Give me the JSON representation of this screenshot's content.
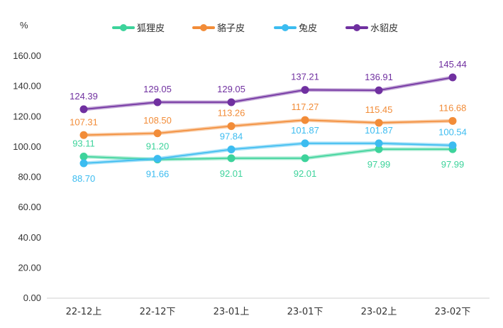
{
  "chart_data": {
    "type": "line",
    "yunit": "%",
    "categories": [
      "22-12上",
      "22-12下",
      "23-01上",
      "23-01下",
      "23-02上",
      "23-02下"
    ],
    "ylim": [
      0,
      160
    ],
    "yticks": [
      0,
      20,
      40,
      60,
      80,
      100,
      120,
      140,
      160
    ],
    "ytick_labels": [
      "0.00",
      "20.00",
      "40.00",
      "60.00",
      "80.00",
      "100.00",
      "120.00",
      "140.00",
      "160.00"
    ],
    "legend_position": "top",
    "grid": false,
    "series": [
      {
        "name": "狐狸皮",
        "color": "#3dd39b",
        "values": [
          93.11,
          91.2,
          92.01,
          92.01,
          97.99,
          97.99
        ],
        "labels": [
          "93.11",
          "91.20",
          "92.01",
          "92.01",
          "97.99",
          "97.99"
        ],
        "label_side": [
          "above",
          "above",
          "below",
          "below",
          "below",
          "below"
        ]
      },
      {
        "name": "貉子皮",
        "color": "#f28c38",
        "values": [
          107.31,
          108.5,
          113.26,
          117.27,
          115.45,
          116.68
        ],
        "labels": [
          "107.31",
          "108.50",
          "113.26",
          "117.27",
          "115.45",
          "116.68"
        ],
        "label_side": [
          "above",
          "above",
          "above",
          "above",
          "above",
          "above"
        ]
      },
      {
        "name": "兔皮",
        "color": "#3cbcf0",
        "values": [
          88.7,
          91.66,
          97.84,
          101.87,
          101.87,
          100.54
        ],
        "labels": [
          "88.70",
          "91.66",
          "97.84",
          "101.87",
          "101.87",
          "100.54"
        ],
        "label_side": [
          "below",
          "below",
          "above",
          "above",
          "above",
          "above"
        ]
      },
      {
        "name": "水貂皮",
        "color": "#7030a0",
        "values": [
          124.39,
          129.05,
          129.05,
          137.21,
          136.91,
          145.44
        ],
        "labels": [
          "124.39",
          "129.05",
          "129.05",
          "137.21",
          "136.91",
          "145.44"
        ],
        "label_side": [
          "above",
          "above",
          "above",
          "above",
          "above",
          "above"
        ]
      }
    ]
  }
}
